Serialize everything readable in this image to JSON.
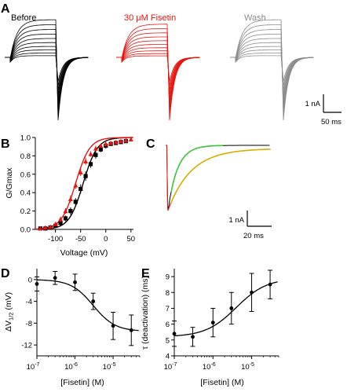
{
  "panel_labels": {
    "A": "A",
    "B": "B",
    "C": "C",
    "D": "D",
    "E": "E"
  },
  "panel_a": {
    "conditions": [
      {
        "label": "Before",
        "color": "#000000"
      },
      {
        "label": "30 μM Fisetin",
        "color": "#e8140e"
      },
      {
        "label": "Wash",
        "color": "#8c8c8c"
      }
    ],
    "scale_bar": {
      "current": "1 nA",
      "time": "50 ms"
    }
  },
  "panel_c": {
    "scale_bar": {
      "current": "1 nA",
      "time": "20 ms"
    },
    "trace_colors": {
      "control": "#000000",
      "fisetin": "#e8140e",
      "fit_control": "#3cc63c",
      "fit_fisetin": "#d4b000"
    }
  },
  "chart_data": [
    {
      "panel": "B",
      "type": "scatter",
      "xlabel": "Voltage (mV)",
      "ylabel": "G/Gmax",
      "xlim": [
        -140,
        55
      ],
      "ylim": [
        0,
        1.0
      ],
      "xticks": [
        -100,
        -50,
        0,
        50
      ],
      "yticks": [
        0.0,
        0.2,
        0.4,
        0.6,
        0.8,
        1.0
      ],
      "series": [
        {
          "color": "#000000",
          "x": [
            -130,
            -120,
            -110,
            -100,
            -90,
            -80,
            -70,
            -60,
            -50,
            -40,
            -30,
            -20,
            -10,
            0,
            10,
            20,
            30,
            40
          ],
          "y": [
            0.01,
            0.01,
            0.02,
            0.04,
            0.07,
            0.12,
            0.2,
            0.3,
            0.44,
            0.58,
            0.71,
            0.81,
            0.87,
            0.91,
            0.93,
            0.94,
            0.95,
            0.96
          ],
          "err": [
            0.01,
            0.01,
            0.01,
            0.02,
            0.03,
            0.03,
            0.04,
            0.04,
            0.05,
            0.05,
            0.04,
            0.04,
            0.03,
            0.03,
            0.02,
            0.02,
            0.02,
            0.02
          ]
        },
        {
          "color": "#e8140e",
          "x": [
            -130,
            -120,
            -110,
            -100,
            -90,
            -80,
            -70,
            -60,
            -50,
            -40,
            -30,
            -20,
            -10,
            0,
            10,
            20,
            30,
            40,
            50
          ],
          "y": [
            0.01,
            0.02,
            0.03,
            0.06,
            0.11,
            0.2,
            0.33,
            0.48,
            0.62,
            0.74,
            0.82,
            0.88,
            0.91,
            0.93,
            0.94,
            0.95,
            0.96,
            0.97,
            0.98
          ],
          "err": [
            0.01,
            0.01,
            0.01,
            0.02,
            0.03,
            0.03,
            0.04,
            0.04,
            0.04,
            0.04,
            0.03,
            0.03,
            0.02,
            0.02,
            0.02,
            0.01,
            0.01,
            0.01,
            0.01
          ]
        }
      ],
      "fits": [
        {
          "color": "#000000",
          "v_half": -45,
          "slope": 14
        },
        {
          "color": "#e8140e",
          "v_half": -60,
          "slope": 14
        }
      ]
    },
    {
      "panel": "D",
      "type": "scatter",
      "xlabel": "[Fisetin] (M)",
      "ylabel": "ΔV1/2 (mV)",
      "ylabel_main": "ΔV",
      "ylabel_sub": "1/2",
      "ylabel_unit": " (mV)",
      "xscale": "log",
      "xlim": [
        1e-07,
        5e-05
      ],
      "ylim": [
        -14,
        2
      ],
      "xtick_values": [
        1e-07,
        1e-06,
        1e-05
      ],
      "xtick_exponents": [
        "-7",
        "-6",
        "-5"
      ],
      "yticks": [
        0,
        -4,
        -8,
        -12
      ],
      "x": [
        1e-07,
        3e-07,
        1e-06,
        3e-06,
        1e-05,
        3e-05
      ],
      "y": [
        -0.8,
        0.3,
        -0.5,
        -4.0,
        -8.5,
        -9.3
      ],
      "err": [
        1.3,
        1.2,
        1.5,
        1.5,
        2.5,
        2.8
      ],
      "fit": {
        "top": 0,
        "bottom": -9.5,
        "ec50": 3e-06,
        "hill": 1.5
      }
    },
    {
      "panel": "E",
      "type": "scatter",
      "xlabel": "[Fisetin] (M)",
      "ylabel": "τ (deactivation) (ms)",
      "xscale": "log",
      "xlim": [
        1e-07,
        5e-05
      ],
      "ylim": [
        4,
        9.5
      ],
      "xtick_values": [
        1e-07,
        1e-06,
        1e-05
      ],
      "xtick_exponents": [
        "-7",
        "-6",
        "-5"
      ],
      "yticks": [
        4,
        5,
        6,
        7,
        8,
        9
      ],
      "x": [
        1e-07,
        3e-07,
        1e-06,
        3e-06,
        1e-05,
        3e-05
      ],
      "y": [
        5.4,
        5.2,
        6.1,
        7.0,
        8.0,
        8.5
      ],
      "err": [
        0.8,
        0.6,
        0.9,
        1.0,
        1.2,
        0.9
      ],
      "fit": {
        "bottom": 5.2,
        "top": 8.9,
        "ec50": 4e-06,
        "hill": 1.1
      }
    }
  ]
}
